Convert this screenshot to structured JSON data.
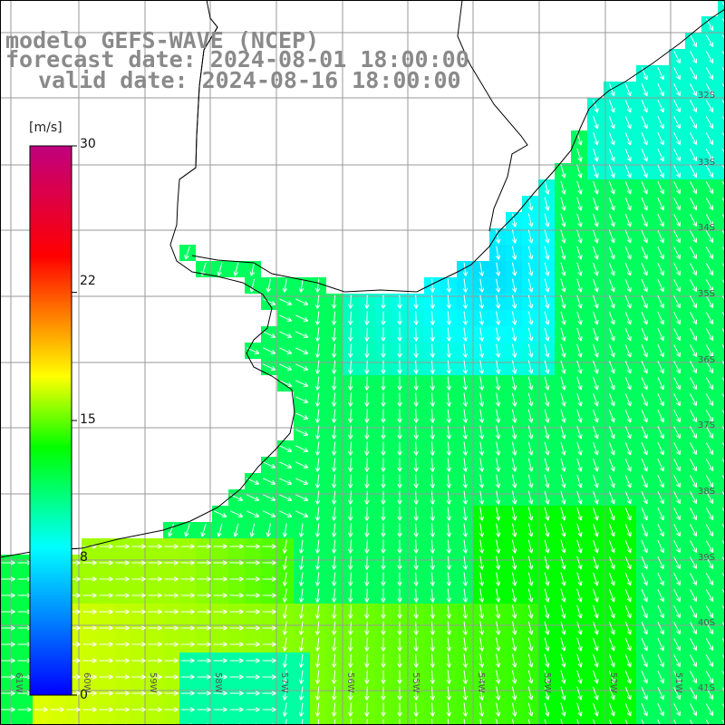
{
  "title": {
    "line1": "modelo GEFS-WAVE (NCEP)",
    "line2": "forecast date: 2024-08-01 18:00:00",
    "line3": "valid date: 2024-08-16 18:00:00"
  },
  "colorbar": {
    "unit": "[m/s]",
    "min": 0,
    "max": 30,
    "ticks": [
      "30",
      "22",
      "15",
      "8",
      "0"
    ],
    "tick_values": [
      30,
      22,
      15,
      8,
      0
    ],
    "colors": [
      "#0000ff",
      "#00ffff",
      "#00ff00",
      "#ffff00",
      "#ff0000",
      "#c0007f"
    ]
  },
  "map": {
    "lon_labels": [
      "61W",
      "60W",
      "59W",
      "58W",
      "57W",
      "56W",
      "55W",
      "54W",
      "53W",
      "52W",
      "51W"
    ],
    "lon_values": [
      -61,
      -60,
      -59,
      -58,
      -57,
      -56,
      -55,
      -54,
      -53,
      -52,
      -51
    ],
    "lat_labels": [
      "32S",
      "33S",
      "34S",
      "35S",
      "36S",
      "37S",
      "38S",
      "39S",
      "40S",
      "41S"
    ],
    "lat_values": [
      -32,
      -33,
      -34,
      -35,
      -36,
      -37,
      -38,
      -39,
      -40,
      -41
    ],
    "field": "wind speed (m/s) with wind direction arrows",
    "land_color": "#ffffff",
    "grid_color": "#999999",
    "arrow_color": "#ffffff"
  }
}
